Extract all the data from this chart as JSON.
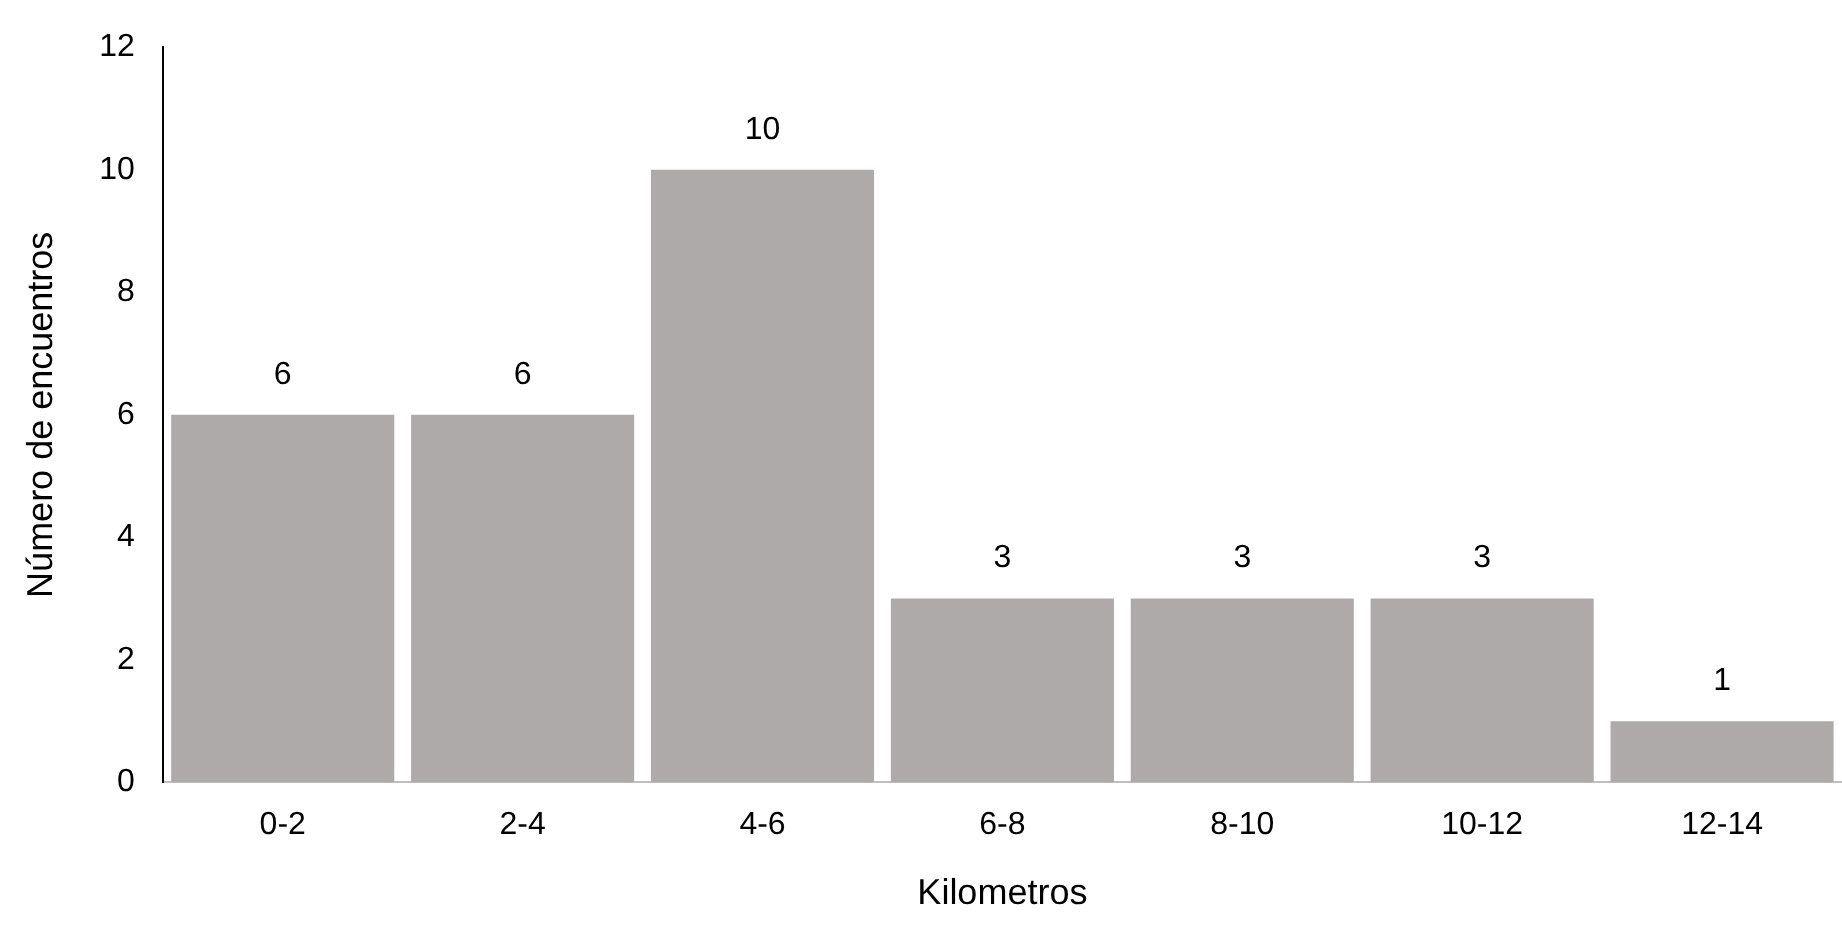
{
  "chart_data": {
    "type": "bar",
    "xlabel": "Kilometros",
    "ylabel": "Número de encuentros",
    "categories": [
      "0-2",
      "2-4",
      "4-6",
      "6-8",
      "8-10",
      "10-12",
      "12-14"
    ],
    "values": [
      6,
      6,
      10,
      3,
      3,
      3,
      1
    ],
    "color": "#aeaaaa",
    "ylim": [
      0,
      12
    ],
    "yticks": [
      0,
      2,
      4,
      6,
      8,
      10,
      12
    ],
    "grid": false,
    "legend": false,
    "data_labels": true
  }
}
